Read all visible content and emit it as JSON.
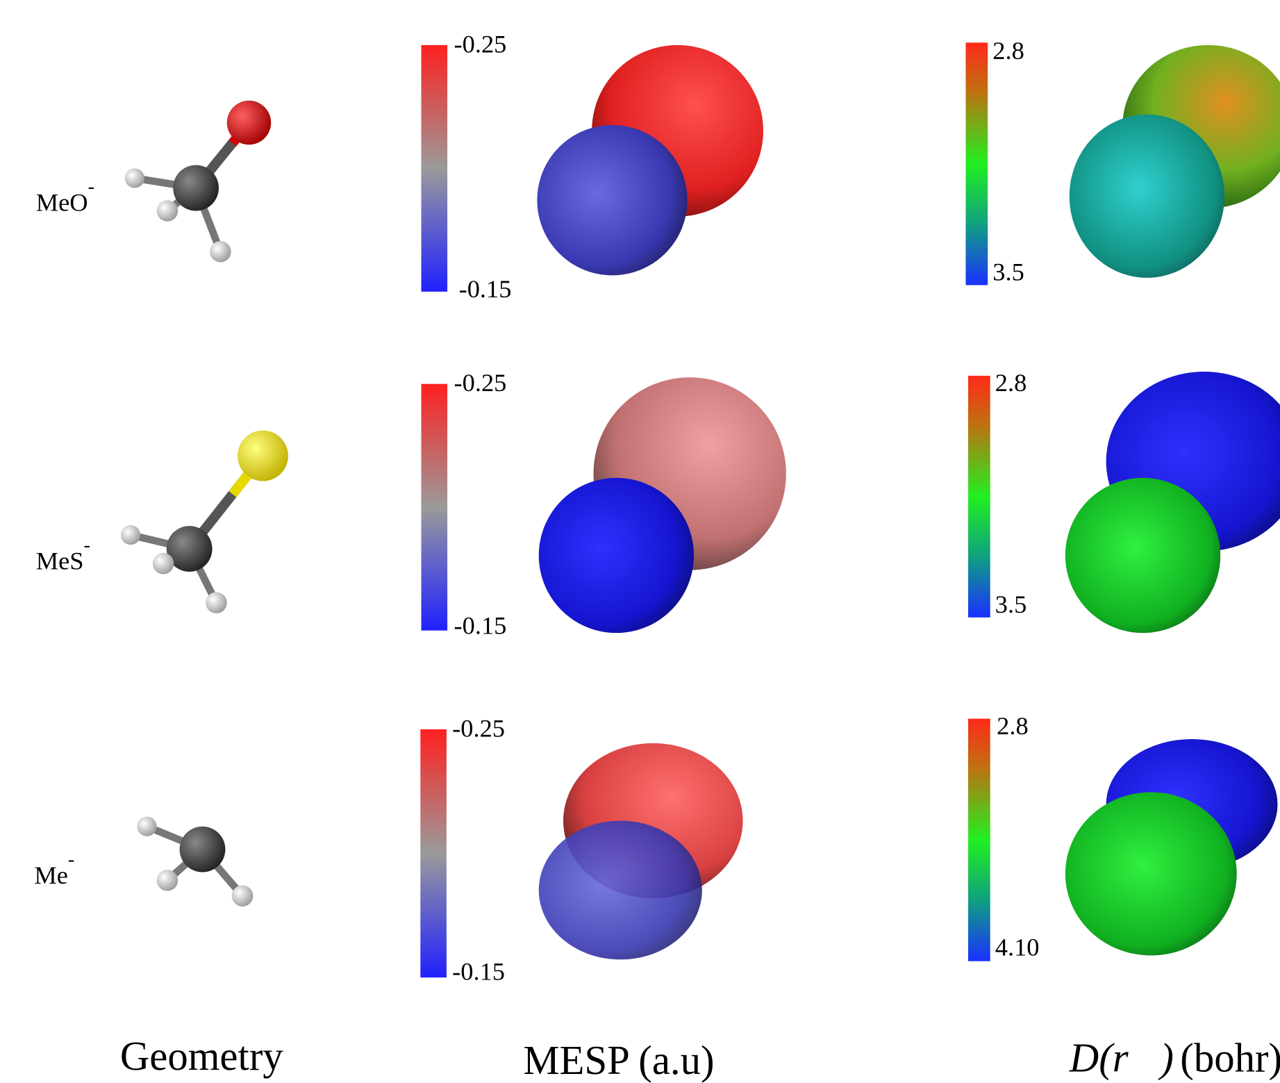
{
  "rows": [
    {
      "label": "MeO",
      "charge": "-",
      "mesp_scale": [
        "-0.25",
        "-0.15"
      ],
      "d_scale": [
        "2.8",
        "3.5"
      ]
    },
    {
      "label": "MeS",
      "charge": "-",
      "mesp_scale": [
        "-0.25",
        "-0.15"
      ],
      "d_scale": [
        "2.8",
        "3.5"
      ]
    },
    {
      "label": "Me",
      "charge": "-",
      "mesp_scale": [
        "-0.25",
        "-0.15"
      ],
      "d_scale": [
        "2.8",
        "4.10"
      ]
    }
  ],
  "columns": {
    "geometry": "Geometry",
    "mesp": "MESP (a.u)",
    "d_symbol": "D",
    "d_argument": "(r⃗)",
    "d_unit": "(bohr)"
  }
}
